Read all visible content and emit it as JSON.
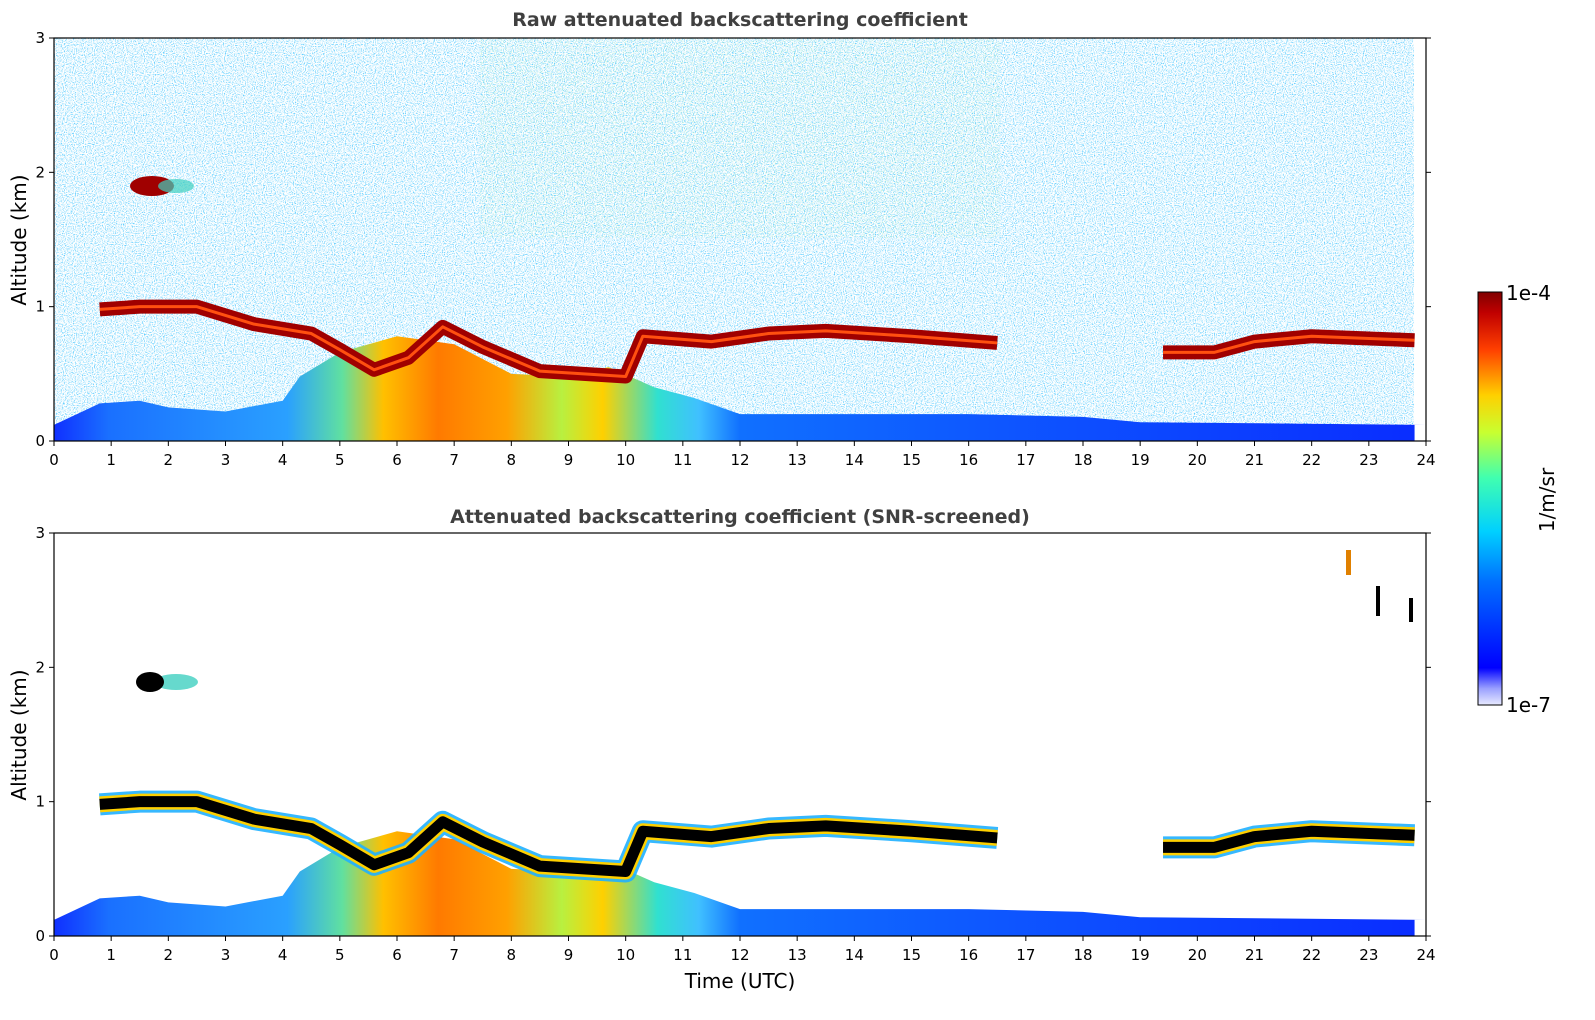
{
  "chart_data": [
    {
      "type": "heatmap",
      "title": "Raw attenuated backscattering coefficient",
      "xlabel": "",
      "ylabel": "Altitude (km)",
      "xlim": [
        0,
        24
      ],
      "ylim": [
        0,
        3
      ],
      "x_ticks": [
        "0",
        "1",
        "2",
        "3",
        "4",
        "5",
        "6",
        "7",
        "8",
        "9",
        "10",
        "11",
        "12",
        "13",
        "14",
        "15",
        "16",
        "17",
        "18",
        "19",
        "20",
        "21",
        "22",
        "23",
        "24"
      ],
      "y_ticks": [
        "0",
        "1",
        "2",
        "3"
      ],
      "screened": false,
      "cloud_layer_altitude_km": [
        [
          0.8,
          0.98
        ],
        [
          1.5,
          1.0
        ],
        [
          2.5,
          1.0
        ],
        [
          3.5,
          0.87
        ],
        [
          4.5,
          0.8
        ],
        [
          5.0,
          0.68
        ],
        [
          5.6,
          0.53
        ],
        [
          6.2,
          0.62
        ],
        [
          6.8,
          0.85
        ],
        [
          7.5,
          0.7
        ],
        [
          8.5,
          0.52
        ],
        [
          10.0,
          0.48
        ],
        [
          10.3,
          0.78
        ],
        [
          11.5,
          0.74
        ],
        [
          12.5,
          0.8
        ],
        [
          13.5,
          0.82
        ],
        [
          15.0,
          0.78
        ],
        [
          16.5,
          0.73
        ],
        [
          19.4,
          0.66
        ],
        [
          20.3,
          0.66
        ],
        [
          21.0,
          0.74
        ],
        [
          22.0,
          0.78
        ],
        [
          23.8,
          0.75
        ]
      ],
      "aerosol_intensity_profile": [
        [
          0,
          0.12
        ],
        [
          0.8,
          0.28
        ],
        [
          1.5,
          0.3
        ],
        [
          2.0,
          0.25
        ],
        [
          3.0,
          0.22
        ],
        [
          4.0,
          0.3
        ],
        [
          4.3,
          0.48
        ],
        [
          5.0,
          0.66
        ],
        [
          6.0,
          0.78
        ],
        [
          7.0,
          0.72
        ],
        [
          8.0,
          0.5
        ],
        [
          9.0,
          0.48
        ],
        [
          9.7,
          0.55
        ],
        [
          10.5,
          0.4
        ],
        [
          11.2,
          0.32
        ],
        [
          12.0,
          0.2
        ],
        [
          16.0,
          0.2
        ],
        [
          18.0,
          0.18
        ],
        [
          19.0,
          0.14
        ],
        [
          24.0,
          0.12
        ]
      ],
      "isolated_cloud": {
        "time_range": [
          1.4,
          2.3
        ],
        "altitude_km": 1.88
      }
    },
    {
      "type": "heatmap",
      "title": "Attenuated backscattering coefficient (SNR-screened)",
      "xlabel": "Time (UTC)",
      "ylabel": "Altitude (km)",
      "xlim": [
        0,
        24
      ],
      "ylim": [
        0,
        3
      ],
      "x_ticks": [
        "0",
        "1",
        "2",
        "3",
        "4",
        "5",
        "6",
        "7",
        "8",
        "9",
        "10",
        "11",
        "12",
        "13",
        "14",
        "15",
        "16",
        "17",
        "18",
        "19",
        "20",
        "21",
        "22",
        "23",
        "24"
      ],
      "y_ticks": [
        "0",
        "1",
        "2",
        "3"
      ],
      "screened": true,
      "isolated_cloud": {
        "time_range": [
          1.4,
          2.4
        ],
        "altitude_km": 1.88
      }
    }
  ],
  "colorbar": {
    "label": "1/m/sr",
    "max_label": "1e-4",
    "min_label": "1e-7",
    "colormap": "jet",
    "scale": "log",
    "range": [
      1e-07,
      0.0001
    ]
  }
}
